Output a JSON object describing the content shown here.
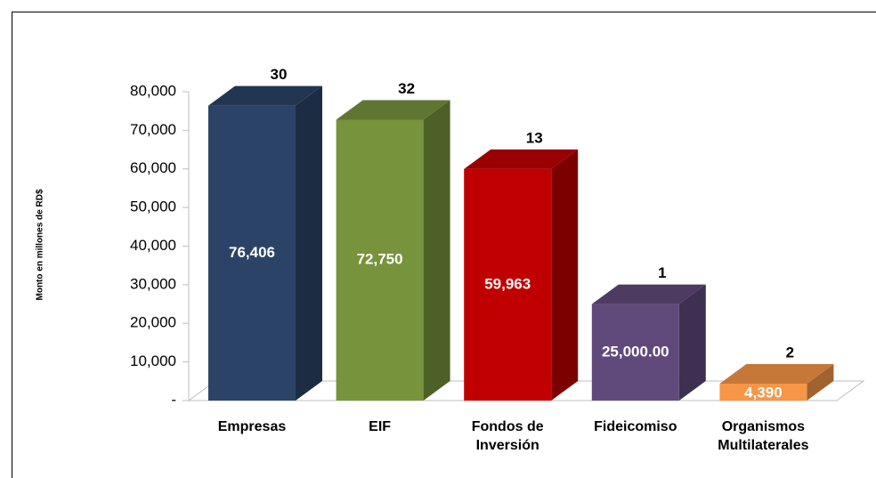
{
  "chart_data": {
    "type": "bar3d",
    "y_axis_label": "Monto en millones de RD$",
    "categories": [
      "Empresas",
      "EIF",
      "Fondos de\nInversión",
      "Fideicomiso",
      "Organismos\nMultilaterales"
    ],
    "values": [
      76406,
      72750,
      59963,
      25000,
      4390
    ],
    "value_labels": [
      "76,406",
      "72,750",
      "59,963",
      "25,000.00",
      "4,390"
    ],
    "annotations": [
      30,
      32,
      13,
      1,
      2
    ],
    "colors": [
      "#2b4366",
      "#77933c",
      "#c00000",
      "#604a7b",
      "#f79646"
    ],
    "ylim": [
      0,
      80000
    ],
    "yticks": [
      {
        "value": 0,
        "label": "-"
      },
      {
        "value": 10000,
        "label": "10,000"
      },
      {
        "value": 20000,
        "label": "20,000"
      },
      {
        "value": 30000,
        "label": "30,000"
      },
      {
        "value": 40000,
        "label": "40,000"
      },
      {
        "value": 50000,
        "label": "50,000"
      },
      {
        "value": 60000,
        "label": "60,000"
      },
      {
        "value": 70000,
        "label": "70,000"
      },
      {
        "value": 80000,
        "label": "80,000"
      }
    ]
  }
}
